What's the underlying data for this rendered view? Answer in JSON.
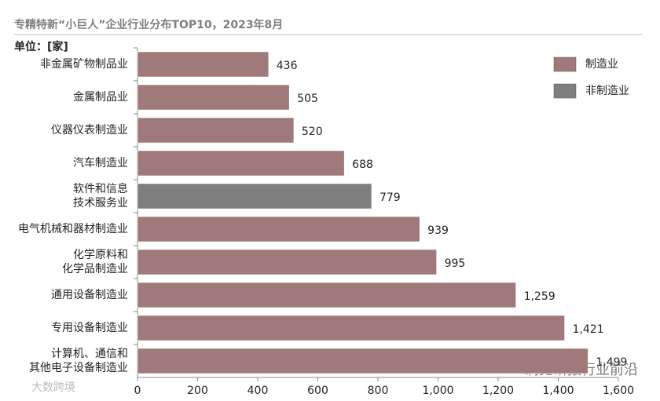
{
  "chart_data": {
    "type": "bar",
    "orientation": "horizontal",
    "title": "专精特新“小巨人”企业行业分布TOP10，2023年8月",
    "unit_label": "单位：[家]",
    "categories": [
      "非金属矿物制品业",
      "金属制品业",
      "仪器仪表制造业",
      "汽车制造业",
      "软件和信息\n技术服务业",
      "电气机械和器材制造业",
      "化学原料和\n化学品制造业",
      "通用设备制造业",
      "专用设备制造业",
      "计算机、通信和\n其他电子设备制造业"
    ],
    "series": [
      {
        "name": "制造业",
        "color": "#a07a7a",
        "values": [
          436,
          505,
          520,
          688,
          null,
          939,
          995,
          1259,
          1421,
          1499
        ],
        "value_labels": [
          "436",
          "505",
          "520",
          "688",
          null,
          "939",
          "995",
          "1,259",
          "1,421",
          "1,499"
        ]
      },
      {
        "name": "非制造业",
        "color": "#7f7f7f",
        "values": [
          null,
          null,
          null,
          null,
          779,
          null,
          null,
          null,
          null,
          null
        ],
        "value_labels": [
          null,
          null,
          null,
          null,
          "779",
          null,
          null,
          null,
          null,
          null
        ]
      }
    ],
    "xlim": [
      0,
      1600
    ],
    "xticks": [
      0,
      200,
      400,
      600,
      800,
      {
        "value": 1000,
        "label": "1,000"
      },
      {
        "value": 1200,
        "label": "1,200"
      },
      {
        "value": 1400,
        "label": "1,400"
      },
      {
        "value": 1600,
        "label": "1,600"
      }
    ],
    "legend": "top-right",
    "watermarks": [
      "洞见研报行业前沿",
      "大数跨境"
    ]
  }
}
